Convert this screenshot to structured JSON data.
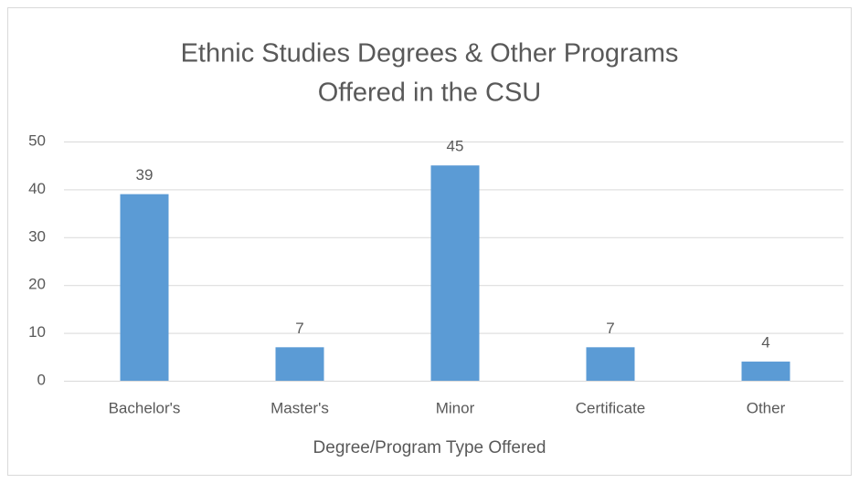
{
  "chart_data": {
    "type": "bar",
    "title": [
      "Ethnic Studies Degrees & Other Programs",
      "Offered in the CSU"
    ],
    "x_label": "Degree/Program Type Offered",
    "categories": [
      "Bachelor's",
      "Master's",
      "Minor",
      "Certificate",
      "Other"
    ],
    "values": [
      39,
      7,
      45,
      7,
      4
    ],
    "color": "#5b9bd5",
    "ylim": [
      0,
      50
    ],
    "yticks": [
      0,
      10,
      20,
      30,
      40,
      50
    ],
    "grid": true,
    "data_labels": true
  }
}
